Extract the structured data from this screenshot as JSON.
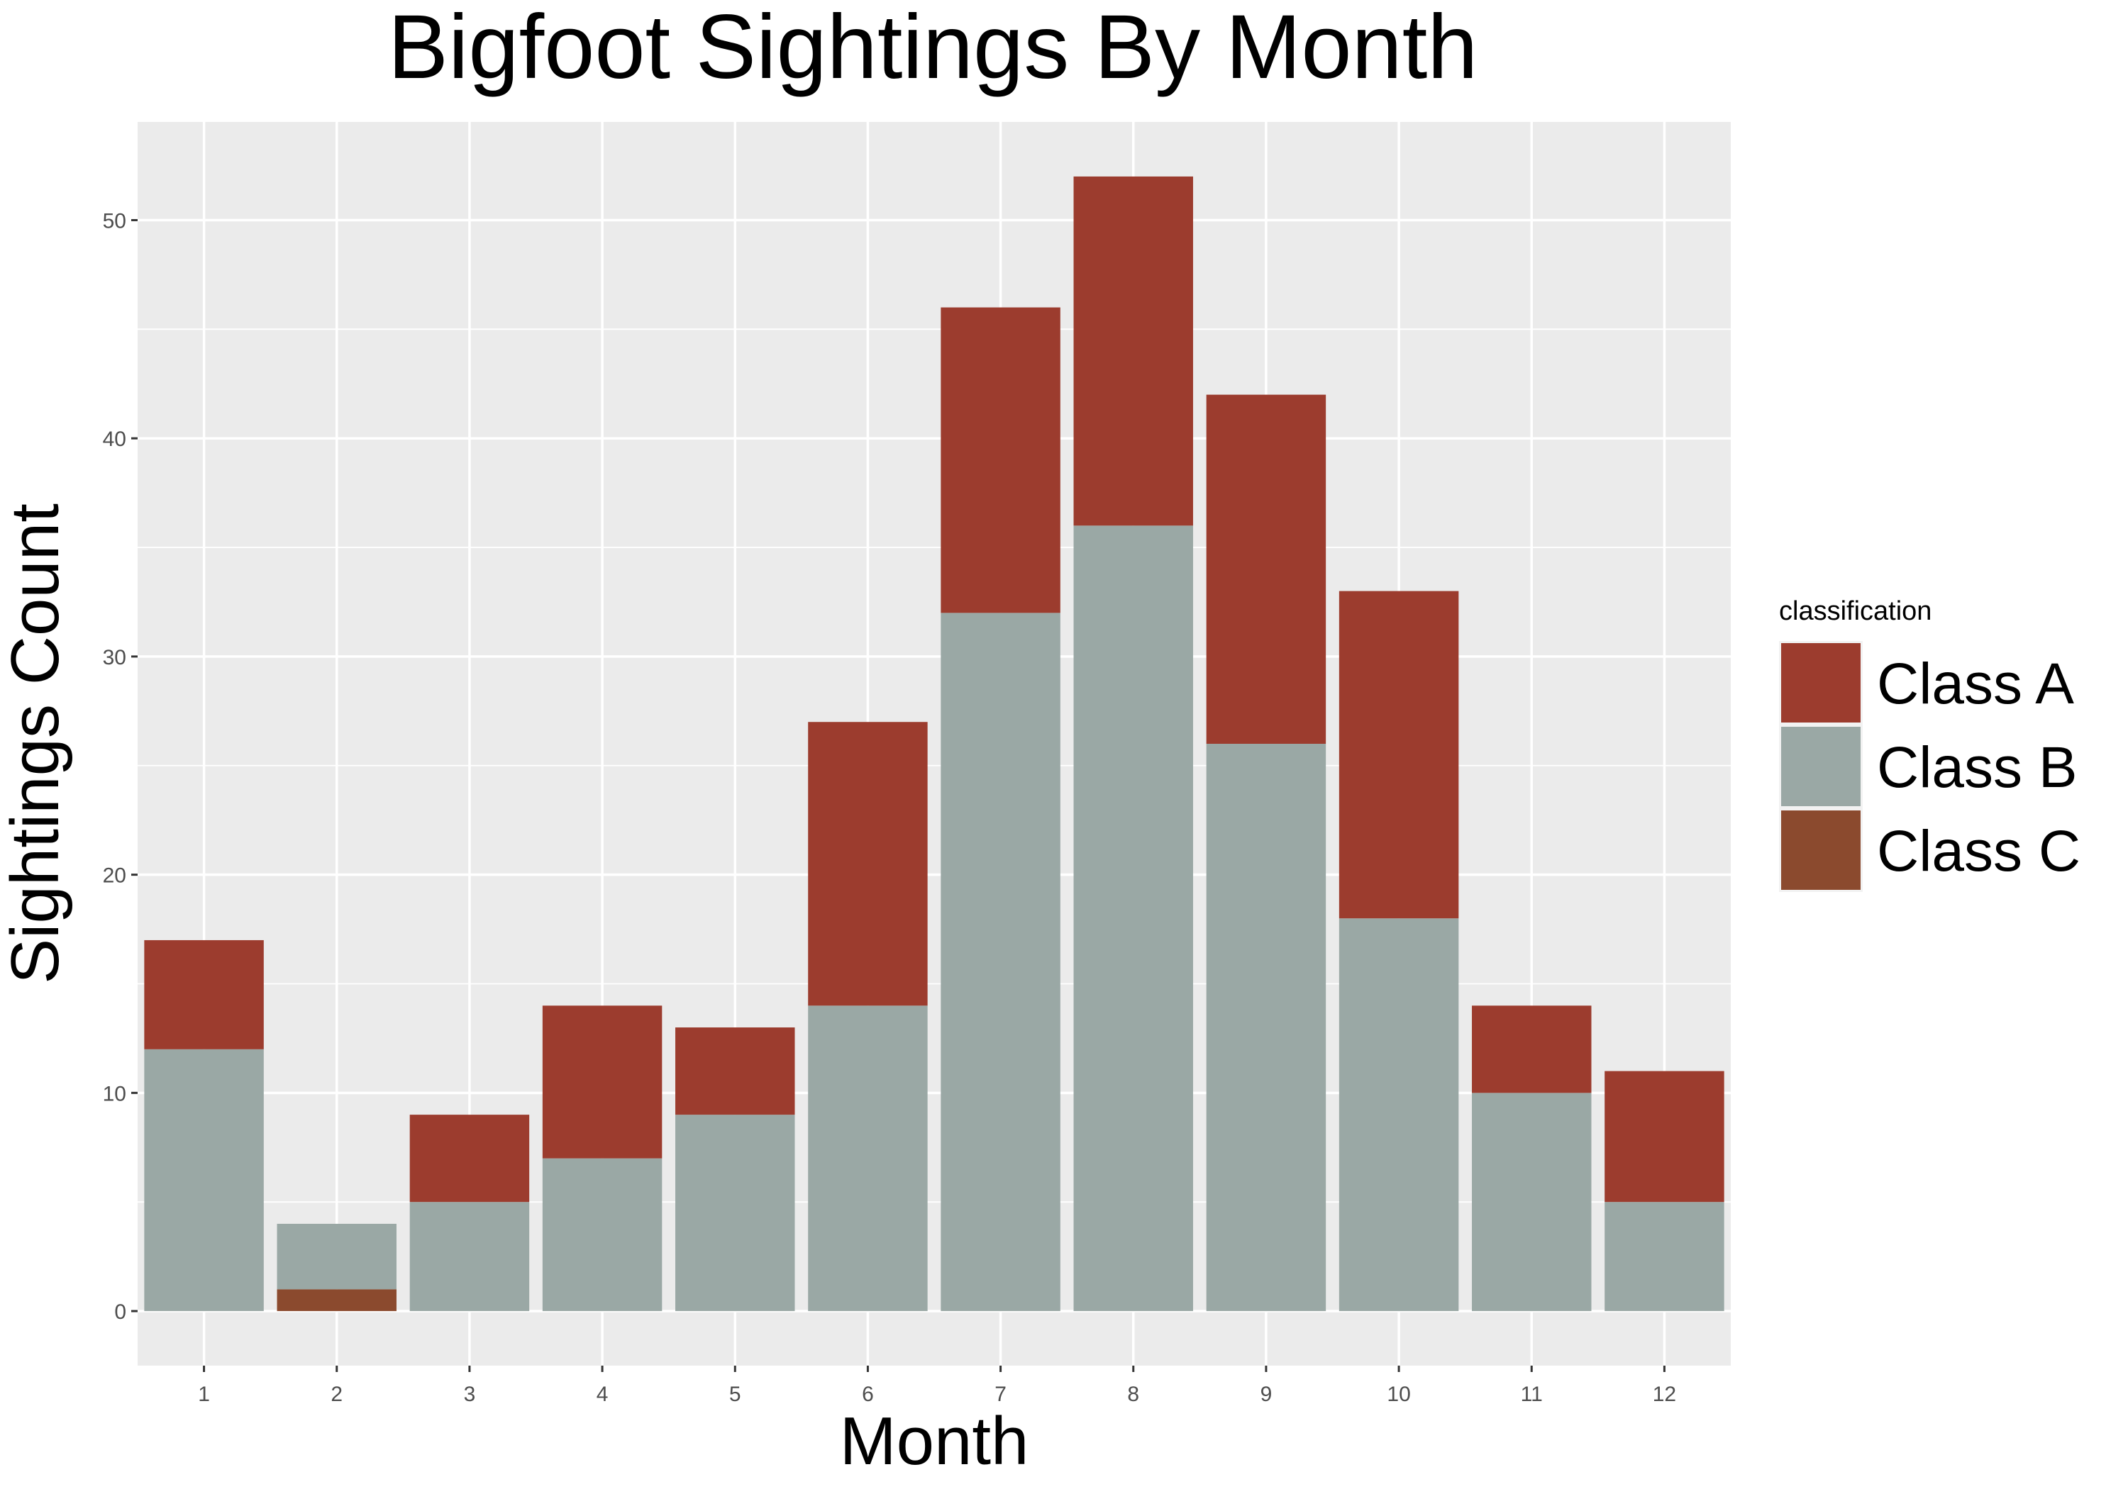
{
  "chart_data": {
    "type": "bar",
    "stacked": true,
    "title": "Bigfoot Sightings By Month",
    "xlabel": "Month",
    "ylabel": "Sightings Count",
    "categories": [
      "1",
      "2",
      "3",
      "4",
      "5",
      "6",
      "7",
      "8",
      "9",
      "10",
      "11",
      "12"
    ],
    "ylim": [
      -2.5,
      54.5
    ],
    "yticks": [
      0,
      10,
      20,
      30,
      40,
      50
    ],
    "grid": true,
    "legend": {
      "title": "classification",
      "position": "right"
    },
    "series": [
      {
        "name": "Class C",
        "color": "#8B4A2E",
        "values": [
          0,
          1,
          0,
          0,
          0,
          0,
          0,
          0,
          0,
          0,
          0,
          0
        ]
      },
      {
        "name": "Class B",
        "color": "#9AA8A5",
        "values": [
          12,
          3,
          5,
          7,
          9,
          14,
          32,
          36,
          26,
          18,
          10,
          5
        ]
      },
      {
        "name": "Class A",
        "color": "#9C3C2E",
        "values": [
          5,
          0,
          4,
          7,
          4,
          13,
          14,
          16,
          16,
          15,
          4,
          6
        ]
      }
    ],
    "legend_order": [
      "Class A",
      "Class B",
      "Class C"
    ]
  }
}
